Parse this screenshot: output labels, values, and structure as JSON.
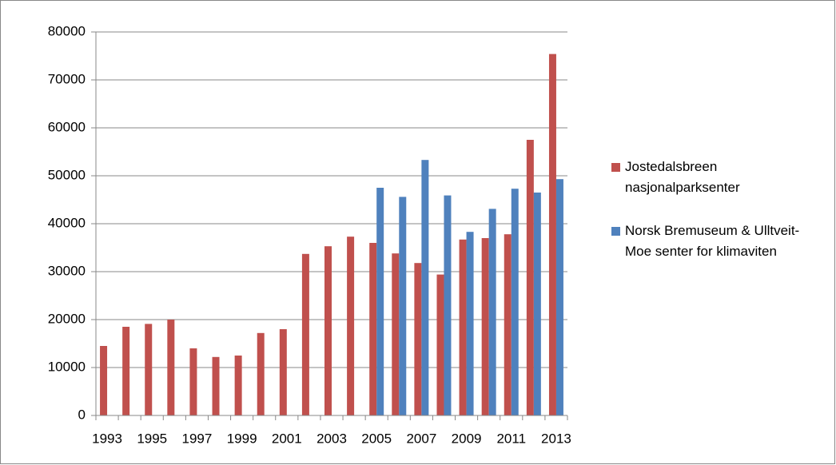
{
  "chart_data": {
    "type": "bar",
    "categories": [
      "1993",
      null,
      "1995",
      null,
      "1997",
      null,
      "1999",
      null,
      "2001",
      null,
      "2003",
      null,
      "2005",
      null,
      "2007",
      null,
      "2009",
      null,
      "2011",
      null,
      "2013"
    ],
    "series": [
      {
        "name": "Jostedalsbreen nasjonalparksenter",
        "color": "#c0504d",
        "values": [
          14500,
          18500,
          19100,
          20000,
          14000,
          12200,
          12500,
          17200,
          18000,
          33700,
          35300,
          37300,
          36000,
          33800,
          31800,
          29400,
          36700,
          37000,
          37800,
          57500,
          75400
        ]
      },
      {
        "name": "Norsk Bremuseum & Ulltveit-Moe senter for klimaviten",
        "color": "#4f81bd",
        "values": [
          null,
          null,
          null,
          null,
          null,
          null,
          null,
          null,
          null,
          null,
          null,
          null,
          47500,
          45600,
          53300,
          45900,
          38300,
          43100,
          47300,
          46500,
          49300
        ]
      }
    ],
    "ylim": [
      0,
      80000
    ],
    "yticks": [
      0,
      10000,
      20000,
      30000,
      40000,
      50000,
      60000,
      70000,
      80000
    ],
    "grid": true,
    "legend": "right"
  }
}
